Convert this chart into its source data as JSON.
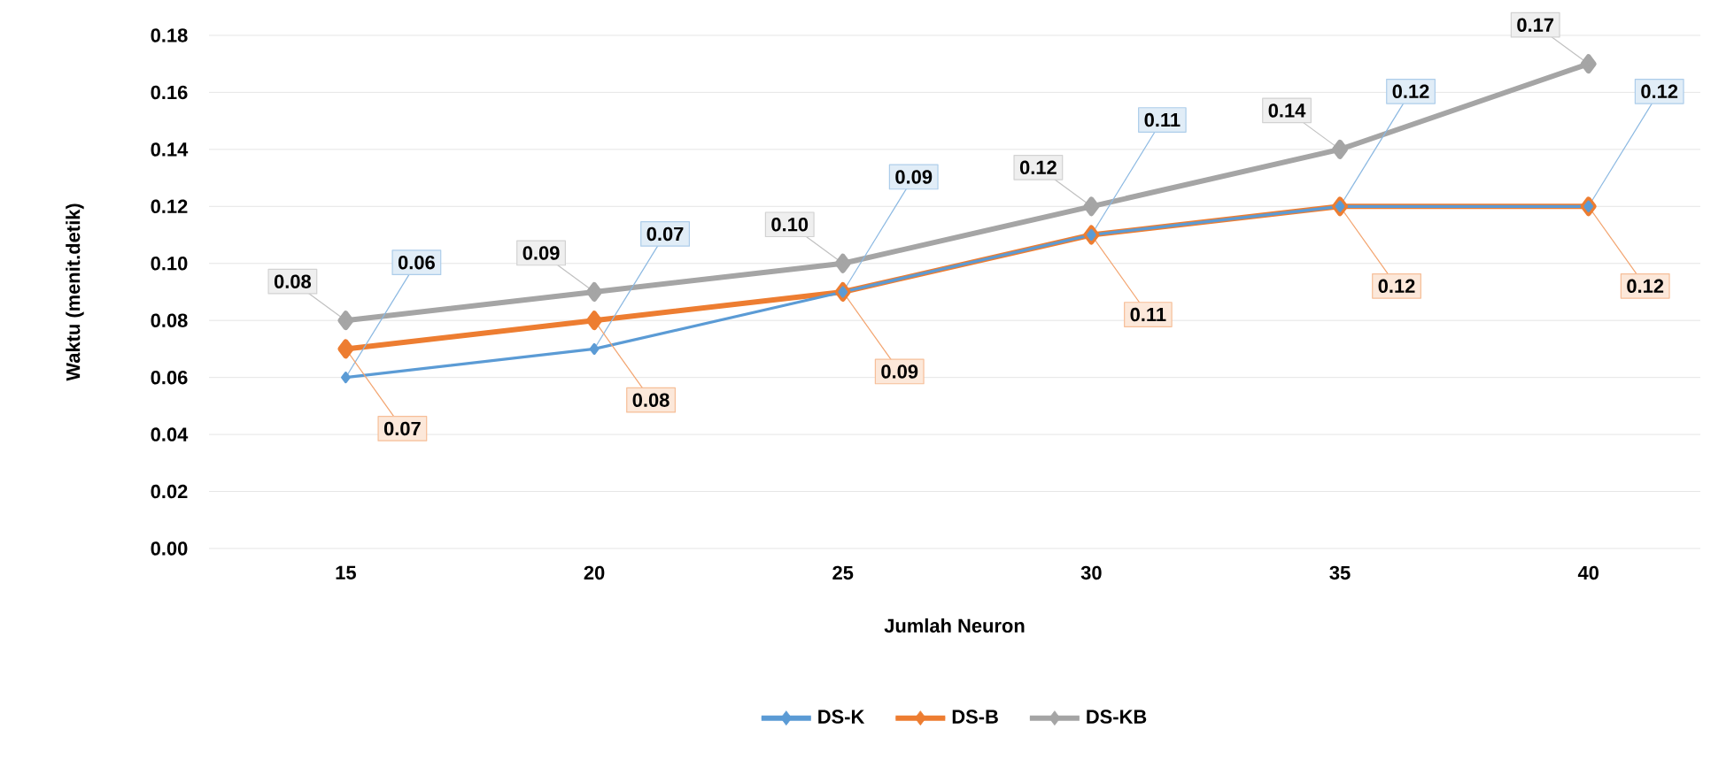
{
  "chart_data": {
    "type": "line",
    "xlabel": "Jumlah Neuron",
    "ylabel": "Waktu (menit.detik)",
    "categories": [
      "15",
      "20",
      "25",
      "30",
      "35",
      "40"
    ],
    "ylim": [
      0,
      0.18
    ],
    "yticks": [
      {
        "value": 0,
        "label": "0.00"
      },
      {
        "value": 0.02,
        "label": "0.02"
      },
      {
        "value": 0.04,
        "label": "0.04"
      },
      {
        "value": 0.06,
        "label": "0.06"
      },
      {
        "value": 0.08,
        "label": "0.08"
      },
      {
        "value": 0.1,
        "label": "0.10"
      },
      {
        "value": 0.12,
        "label": "0.12"
      },
      {
        "value": 0.14,
        "label": "0.14"
      },
      {
        "value": 0.16,
        "label": "0.16"
      },
      {
        "value": 0.18,
        "label": "0.18"
      }
    ],
    "grid": "y",
    "legend": "bottom",
    "marker": "diamond",
    "line_style": "solid",
    "series": [
      {
        "name": "DS-K",
        "color": "#5b9bd5",
        "values": [
          0.06,
          0.07,
          0.09,
          0.11,
          0.12,
          0.12
        ],
        "value_labels": [
          "0.06",
          "0.07",
          "0.09",
          "0.11",
          "0.12",
          "0.12"
        ]
      },
      {
        "name": "DS-B",
        "color": "#ed7d31",
        "values": [
          0.07,
          0.08,
          0.09,
          0.11,
          0.12,
          0.12
        ],
        "value_labels": [
          "0.07",
          "0.08",
          "0.09",
          "0.11",
          "0.12",
          "0.12"
        ]
      },
      {
        "name": "DS-KB",
        "color": "#a5a5a5",
        "values": [
          0.08,
          0.09,
          0.1,
          0.12,
          0.14,
          0.17
        ],
        "value_labels": [
          "0.08",
          "0.09",
          "0.10",
          "0.12",
          "0.14",
          "0.17"
        ]
      }
    ]
  }
}
